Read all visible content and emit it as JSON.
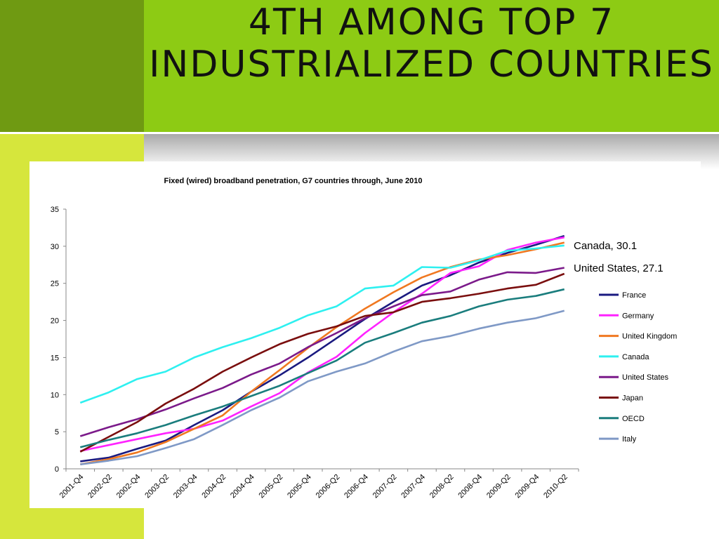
{
  "slide": {
    "title": "4TH AMONG TOP 7 INDUSTRIALIZED COUNTRIES",
    "colors": {
      "dark_green": "#6f9a12",
      "bright_green": "#8dcb14",
      "lime": "#d6e63c"
    }
  },
  "chart_data": {
    "type": "line",
    "title": "Fixed (wired) broadband penetration, G7 countries through, June 2010",
    "xlabel": "",
    "ylabel": "",
    "ylim": [
      0,
      35
    ],
    "yticks": [
      0,
      5,
      10,
      15,
      20,
      25,
      30,
      35
    ],
    "grid": false,
    "legend_position": "right",
    "categories": [
      "2001-Q4",
      "2002-Q2",
      "2002-Q4",
      "2003-Q2",
      "2003-Q4",
      "2004-Q2",
      "2004-Q4",
      "2005-Q2",
      "2005-Q4",
      "2006-Q2",
      "2006-Q4",
      "2007-Q2",
      "2007-Q4",
      "2008-Q2",
      "2008-Q4",
      "2009-Q2",
      "2009-Q4",
      "2010-Q2"
    ],
    "series": [
      {
        "name": "France",
        "color": "#1a1a80",
        "values": [
          1.0,
          1.5,
          2.7,
          3.8,
          5.9,
          7.9,
          10.4,
          12.6,
          15.0,
          17.6,
          20.2,
          22.5,
          24.7,
          26.1,
          27.8,
          29.1,
          30.2,
          31.4
        ]
      },
      {
        "name": "Germany",
        "color": "#ff22ff",
        "values": [
          2.4,
          3.2,
          4.0,
          4.8,
          5.4,
          6.5,
          8.4,
          10.2,
          13.0,
          15.1,
          18.3,
          21.1,
          23.6,
          26.4,
          27.3,
          29.5,
          30.5,
          31.2
        ]
      },
      {
        "name": "United Kingdom",
        "color": "#f07820",
        "values": [
          0.6,
          1.3,
          2.2,
          3.6,
          5.4,
          7.2,
          10.4,
          13.3,
          16.3,
          19.1,
          21.6,
          23.8,
          25.8,
          27.2,
          28.2,
          28.8,
          29.6,
          30.5
        ]
      },
      {
        "name": "Canada",
        "color": "#2ef0f0",
        "values": [
          8.9,
          10.3,
          12.1,
          13.1,
          15.0,
          16.4,
          17.6,
          19.0,
          20.7,
          21.9,
          24.3,
          24.7,
          27.2,
          27.1,
          28.1,
          29.4,
          29.7,
          30.1
        ]
      },
      {
        "name": "United States",
        "color": "#7b1a8a",
        "values": [
          4.4,
          5.6,
          6.7,
          8.0,
          9.5,
          10.9,
          12.7,
          14.2,
          16.4,
          18.3,
          20.3,
          21.9,
          23.4,
          23.9,
          25.5,
          26.5,
          26.4,
          27.1
        ]
      },
      {
        "name": "Japan",
        "color": "#7a0e0e",
        "values": [
          2.3,
          4.3,
          6.3,
          8.8,
          10.8,
          13.1,
          15.0,
          16.8,
          18.2,
          19.2,
          20.6,
          21.1,
          22.5,
          23.0,
          23.6,
          24.3,
          24.8,
          26.3
        ]
      },
      {
        "name": "OECD",
        "color": "#1a7d7d",
        "values": [
          2.9,
          3.9,
          4.8,
          5.9,
          7.2,
          8.4,
          9.8,
          11.2,
          12.9,
          14.6,
          17.0,
          18.3,
          19.7,
          20.6,
          21.9,
          22.8,
          23.3,
          24.2
        ]
      },
      {
        "name": "Italy",
        "color": "#7f99c6",
        "values": [
          0.6,
          1.1,
          1.7,
          2.8,
          4.0,
          5.9,
          7.9,
          9.6,
          11.8,
          13.1,
          14.2,
          15.8,
          17.2,
          17.9,
          18.9,
          19.7,
          20.3,
          21.3
        ]
      }
    ],
    "annotations": [
      "Canada, 30.1",
      "United States, 27.1"
    ]
  }
}
